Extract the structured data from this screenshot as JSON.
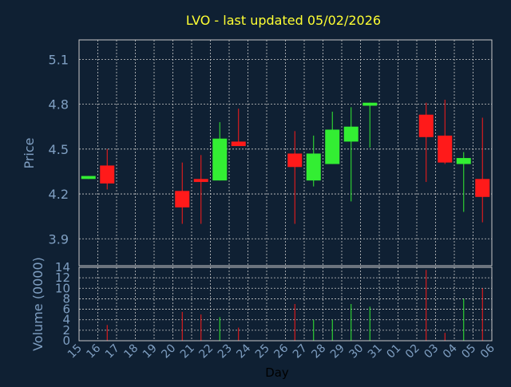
{
  "chart_data": [
    {
      "type": "candlestick",
      "title": "LVO - last updated 05/02/2026",
      "ylabel": "Price",
      "xlabel": "Day",
      "ylim": [
        3.72,
        5.23
      ],
      "yticks": [
        "3.9",
        "4.2",
        "4.5",
        "4.8",
        "5.1"
      ],
      "ytick_values": [
        3.9,
        4.2,
        4.5,
        4.8,
        5.1
      ],
      "grid": true,
      "x_labels": [
        "15",
        "16",
        "17",
        "18",
        "19",
        "20",
        "21",
        "22",
        "23",
        "24",
        "25",
        "26",
        "27",
        "28",
        "29",
        "30",
        "31",
        "01",
        "02",
        "03",
        "04",
        "05",
        "06"
      ],
      "candles": [
        {
          "day": "15",
          "open": 4.3,
          "close": 4.32,
          "high": 4.32,
          "low": 4.3
        },
        {
          "day": "16",
          "open": 4.39,
          "close": 4.27,
          "high": 4.5,
          "low": 4.23
        },
        {
          "day": "20",
          "open": 4.22,
          "close": 4.11,
          "high": 4.41,
          "low": 4.0
        },
        {
          "day": "21",
          "open": 4.3,
          "close": 4.28,
          "high": 4.46,
          "low": 4.0
        },
        {
          "day": "22",
          "open": 4.29,
          "close": 4.57,
          "high": 4.68,
          "low": 4.29
        },
        {
          "day": "23",
          "open": 4.55,
          "close": 4.52,
          "high": 4.77,
          "low": 4.52
        },
        {
          "day": "26",
          "open": 4.47,
          "close": 4.38,
          "high": 4.62,
          "low": 4.0
        },
        {
          "day": "27",
          "open": 4.29,
          "close": 4.47,
          "high": 4.59,
          "low": 4.25
        },
        {
          "day": "28",
          "open": 4.4,
          "close": 4.63,
          "high": 4.75,
          "low": 4.4
        },
        {
          "day": "29",
          "open": 4.55,
          "close": 4.65,
          "high": 4.78,
          "low": 4.15
        },
        {
          "day": "30",
          "open": 4.79,
          "close": 4.81,
          "high": 4.81,
          "low": 4.51
        },
        {
          "day": "02",
          "open": 4.73,
          "close": 4.58,
          "high": 4.81,
          "low": 4.28
        },
        {
          "day": "03",
          "open": 4.59,
          "close": 4.41,
          "high": 4.83,
          "low": 4.4
        },
        {
          "day": "04",
          "open": 4.4,
          "close": 4.44,
          "high": 4.48,
          "low": 4.08
        },
        {
          "day": "05",
          "open": 4.3,
          "close": 4.18,
          "high": 4.71,
          "low": 4.01
        }
      ]
    },
    {
      "type": "bar",
      "ylabel": "Volume (0000)",
      "ylim": [
        0,
        14
      ],
      "yticks": [
        "0",
        "2",
        "4",
        "6",
        "8",
        "10",
        "12",
        "14"
      ],
      "ytick_values": [
        0,
        2,
        4,
        6,
        8,
        10,
        12,
        14
      ],
      "grid": true,
      "volumes": [
        {
          "day": "16",
          "value": 3.0,
          "direction": "down"
        },
        {
          "day": "20",
          "value": 5.5,
          "direction": "down"
        },
        {
          "day": "21",
          "value": 5.0,
          "direction": "down"
        },
        {
          "day": "22",
          "value": 4.5,
          "direction": "up"
        },
        {
          "day": "23",
          "value": 2.5,
          "direction": "down"
        },
        {
          "day": "26",
          "value": 7.0,
          "direction": "down"
        },
        {
          "day": "27",
          "value": 4.0,
          "direction": "up"
        },
        {
          "day": "28",
          "value": 4.0,
          "direction": "up"
        },
        {
          "day": "29",
          "value": 7.0,
          "direction": "up"
        },
        {
          "day": "30",
          "value": 6.5,
          "direction": "up"
        },
        {
          "day": "02",
          "value": 13.5,
          "direction": "down"
        },
        {
          "day": "03",
          "value": 1.5,
          "direction": "down"
        },
        {
          "day": "04",
          "value": 8.0,
          "direction": "up"
        },
        {
          "day": "05",
          "value": 10.0,
          "direction": "down"
        }
      ]
    }
  ],
  "colors": {
    "background": "#0f2033",
    "plot_border": "#c8c8c8",
    "grid": "#c8c8c8",
    "axis_text": "#7f9fc2",
    "title": "#ffff33",
    "up": "#33ee33",
    "down": "#ff1a1a"
  }
}
